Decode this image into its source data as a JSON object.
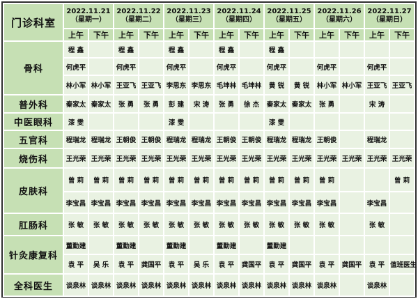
{
  "colors": {
    "header_bg": "#c6e0b4",
    "cell_bg": "#e9f2e2",
    "border": "#2e2e2e",
    "text": "#111111"
  },
  "table": {
    "corner_label": "门诊科室",
    "am_label": "上午",
    "pm_label": "下午",
    "days": [
      {
        "date": "2022.11.21",
        "weekday": "（星期一）"
      },
      {
        "date": "2022.11.22",
        "weekday": "（星期二）"
      },
      {
        "date": "2022.11.23",
        "weekday": "（星期三）"
      },
      {
        "date": "2022.11.24",
        "weekday": "（星期四）"
      },
      {
        "date": "2022.11.25",
        "weekday": "（星期五）"
      },
      {
        "date": "2022.11.26",
        "weekday": "（星期六）"
      },
      {
        "date": "2022.11.27",
        "weekday": "（星期日）"
      }
    ],
    "departments": [
      {
        "name": "骨科",
        "rows": [
          [
            "程 鑫",
            "",
            "程 鑫",
            "",
            "程 鑫",
            "",
            "程 鑫",
            "",
            "程 鑫",
            "",
            "",
            "",
            "",
            ""
          ],
          [
            "何虎平",
            "",
            "何虎平",
            "",
            "何虎平",
            "",
            "何虎平",
            "",
            "何虎平",
            "",
            "何虎平",
            "",
            "何虎平",
            ""
          ],
          [
            "林小军",
            "林小军",
            "王亚飞",
            "王亚飞",
            "李思东",
            "李思东",
            "毛坤林",
            "毛坤林",
            "黄 锐",
            "黄 锐",
            "林小军",
            "林小军",
            "王亚飞",
            "王亚飞"
          ]
        ]
      },
      {
        "name": "普外科",
        "rows": [
          [
            "秦家太",
            "秦家太",
            "张 勇",
            "张 勇",
            "彭 建",
            "宋 涛",
            "张 勇",
            "徐 杰",
            "秦家太",
            "秦家太",
            "张 勇",
            "",
            "宋 涛",
            ""
          ]
        ]
      },
      {
        "name": "中医眼科",
        "rows": [
          [
            "漆 雯",
            "",
            "",
            "",
            "漆 雯",
            "",
            "",
            "",
            "漆 雯",
            "",
            "",
            "",
            "",
            ""
          ]
        ]
      },
      {
        "name": "五官科",
        "rows": [
          [
            "程瑞龙",
            "程瑞龙",
            "王朝俊",
            "王朝俊",
            "程瑞龙",
            "程瑞龙",
            "王朝俊",
            "王朝俊",
            "程瑞龙",
            "程瑞龙",
            "王朝俊",
            "",
            "程瑞龙",
            ""
          ]
        ]
      },
      {
        "name": "烧伤科",
        "rows": [
          [
            "王光荣",
            "王光荣",
            "王光荣",
            "王光荣",
            "王光荣",
            "王光荣",
            "王光荣",
            "王光荣",
            "王光荣",
            "王光荣",
            "王光荣",
            "王光荣",
            "王光荣",
            "王光荣"
          ]
        ]
      },
      {
        "name": "皮肤科",
        "rows": [
          [
            "曾 莉",
            "曾 莉",
            "曾 莉",
            "曾 莉",
            "曾 莉",
            "曾 莉",
            "曾 莉",
            "曾 莉",
            "曾 莉",
            "曾 莉",
            "曾 莉",
            "",
            "",
            "曾 莉"
          ],
          [
            "李宝昌",
            "李宝昌",
            "李宝昌",
            "李宝昌",
            "李宝昌",
            "李宝昌",
            "李宝昌",
            "李宝昌",
            "李宝昌",
            "李宝昌",
            "李宝昌",
            "",
            "李宝昌",
            ""
          ]
        ]
      },
      {
        "name": "肛肠科",
        "rows": [
          [
            "张 敏",
            "张 敏",
            "张 敏",
            "张 敏",
            "张 敏",
            "张 敏",
            "张 敏",
            "张 敏",
            "张 敏",
            "张 敏",
            "张 敏",
            "",
            "张 敏",
            ""
          ]
        ]
      },
      {
        "name": "针灸康复科",
        "rows": [
          [
            "董勤建",
            "",
            "董勤建",
            "",
            "董勤建",
            "",
            "董勤建",
            "",
            "董勤建",
            "",
            "",
            "",
            "",
            ""
          ],
          [
            "袁 平",
            "吴 乐",
            "袁 平",
            "龚国平",
            "袁 平",
            "吴 乐",
            "袁 平",
            "龚国平",
            "袁 平",
            "龚国平",
            "袁 平",
            "龚国平",
            "袁 平",
            "值班医生"
          ]
        ]
      },
      {
        "name": "全科医生",
        "rows": [
          [
            "谈泉林",
            "谈泉林",
            "谈泉林",
            "谈泉林",
            "谈泉林",
            "谈泉林",
            "谈泉林",
            "谈泉林",
            "谈泉林",
            "谈泉林",
            "谈泉林",
            "",
            "谈泉林",
            ""
          ]
        ]
      }
    ]
  }
}
